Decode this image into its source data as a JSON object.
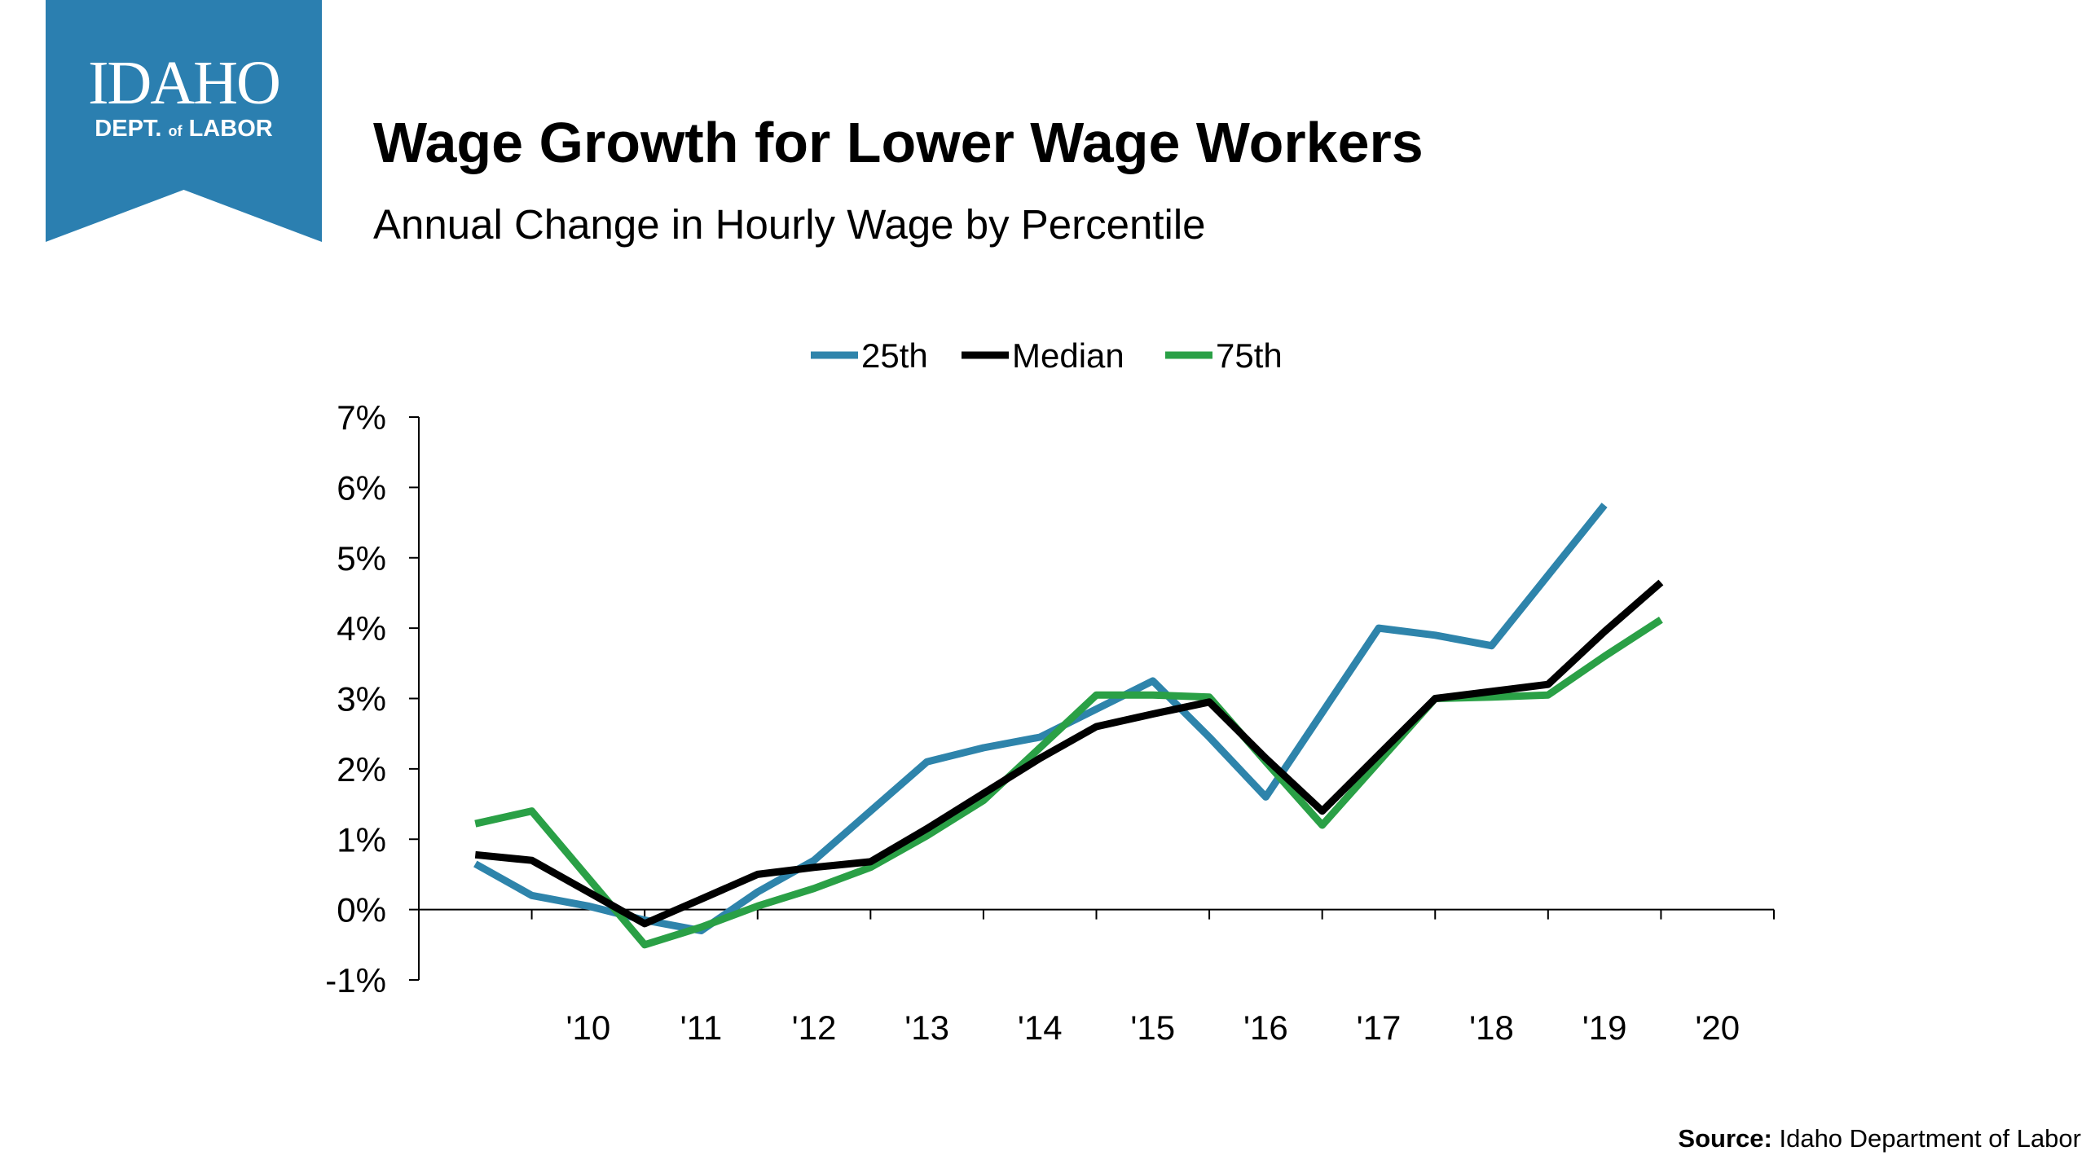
{
  "logo": {
    "line1": "IDAHO",
    "line2_a": "DEPT.",
    "line2_b": "of",
    "line2_c": "LABOR",
    "color": "#2b7fb0"
  },
  "title": "Wage Growth for Lower Wage Workers",
  "subtitle": "Annual Change in Hourly Wage by Percentile",
  "source": {
    "label": "Source:",
    "text": "Idaho Department of Labor"
  },
  "chart_data": {
    "type": "line",
    "title": "Wage Growth for Lower Wage Workers",
    "subtitle": "Annual Change in Hourly Wage by Percentile",
    "xlabel": "",
    "ylabel": "",
    "x": [
      "",
      "'10",
      "'11",
      "'12",
      "'13",
      "'14",
      "'15",
      "'16",
      "'17",
      "'18",
      "'19",
      "'20"
    ],
    "ylim": [
      -1,
      7
    ],
    "yticks": [
      "-1%",
      "0%",
      "1%",
      "2%",
      "3%",
      "4%",
      "5%",
      "6%",
      "7%"
    ],
    "grid": false,
    "legend": "top-center",
    "series": [
      {
        "name": "25th",
        "color": "#2e84ab",
        "points": [
          {
            "x": 0.0,
            "y": 0.65
          },
          {
            "x": 0.5,
            "y": 0.2
          },
          {
            "x": 1.0,
            "y": 0.05
          },
          {
            "x": 1.5,
            "y": -0.15
          },
          {
            "x": 2.0,
            "y": -0.3
          },
          {
            "x": 2.5,
            "y": 0.25
          },
          {
            "x": 3.0,
            "y": 0.7
          },
          {
            "x": 3.5,
            "y": 1.4
          },
          {
            "x": 4.0,
            "y": 2.1
          },
          {
            "x": 4.5,
            "y": 2.3
          },
          {
            "x": 5.0,
            "y": 2.45
          },
          {
            "x": 5.5,
            "y": 2.85
          },
          {
            "x": 6.0,
            "y": 3.25
          },
          {
            "x": 6.5,
            "y": 2.45
          },
          {
            "x": 7.0,
            "y": 1.6
          },
          {
            "x": 7.5,
            "y": 2.8
          },
          {
            "x": 8.0,
            "y": 4.0
          },
          {
            "x": 8.5,
            "y": 3.9
          },
          {
            "x": 9.0,
            "y": 3.75
          },
          {
            "x": 9.5,
            "y": 4.75
          },
          {
            "x": 10.0,
            "y": 5.75
          }
        ]
      },
      {
        "name": "Median",
        "color": "#000000",
        "points": [
          {
            "x": 0.0,
            "y": 0.78
          },
          {
            "x": 0.5,
            "y": 0.7
          },
          {
            "x": 1.0,
            "y": 0.25
          },
          {
            "x": 1.5,
            "y": -0.2
          },
          {
            "x": 2.0,
            "y": 0.15
          },
          {
            "x": 2.5,
            "y": 0.5
          },
          {
            "x": 3.0,
            "y": 0.6
          },
          {
            "x": 3.5,
            "y": 0.68
          },
          {
            "x": 4.0,
            "y": 1.15
          },
          {
            "x": 4.5,
            "y": 1.65
          },
          {
            "x": 5.0,
            "y": 2.15
          },
          {
            "x": 5.5,
            "y": 2.6
          },
          {
            "x": 6.0,
            "y": 2.78
          },
          {
            "x": 6.5,
            "y": 2.95
          },
          {
            "x": 7.0,
            "y": 2.15
          },
          {
            "x": 7.5,
            "y": 1.4
          },
          {
            "x": 8.0,
            "y": 2.2
          },
          {
            "x": 8.5,
            "y": 3.0
          },
          {
            "x": 9.0,
            "y": 3.1
          },
          {
            "x": 9.5,
            "y": 3.2
          },
          {
            "x": 10.0,
            "y": 3.95
          },
          {
            "x": 10.5,
            "y": 4.65
          }
        ]
      },
      {
        "name": "75th",
        "color": "#2aa046",
        "points": [
          {
            "x": 0.0,
            "y": 1.22
          },
          {
            "x": 0.5,
            "y": 1.4
          },
          {
            "x": 1.0,
            "y": 0.45
          },
          {
            "x": 1.5,
            "y": -0.5
          },
          {
            "x": 2.0,
            "y": -0.25
          },
          {
            "x": 2.5,
            "y": 0.05
          },
          {
            "x": 3.0,
            "y": 0.3
          },
          {
            "x": 3.5,
            "y": 0.6
          },
          {
            "x": 4.0,
            "y": 1.05
          },
          {
            "x": 4.5,
            "y": 1.55
          },
          {
            "x": 5.0,
            "y": 2.3
          },
          {
            "x": 5.5,
            "y": 3.05
          },
          {
            "x": 6.0,
            "y": 3.05
          },
          {
            "x": 6.5,
            "y": 3.02
          },
          {
            "x": 7.0,
            "y": 2.1
          },
          {
            "x": 7.5,
            "y": 1.2
          },
          {
            "x": 8.0,
            "y": 2.1
          },
          {
            "x": 8.5,
            "y": 3.0
          },
          {
            "x": 9.0,
            "y": 3.02
          },
          {
            "x": 9.5,
            "y": 3.05
          },
          {
            "x": 10.0,
            "y": 3.6
          },
          {
            "x": 10.5,
            "y": 4.12
          }
        ]
      }
    ]
  }
}
